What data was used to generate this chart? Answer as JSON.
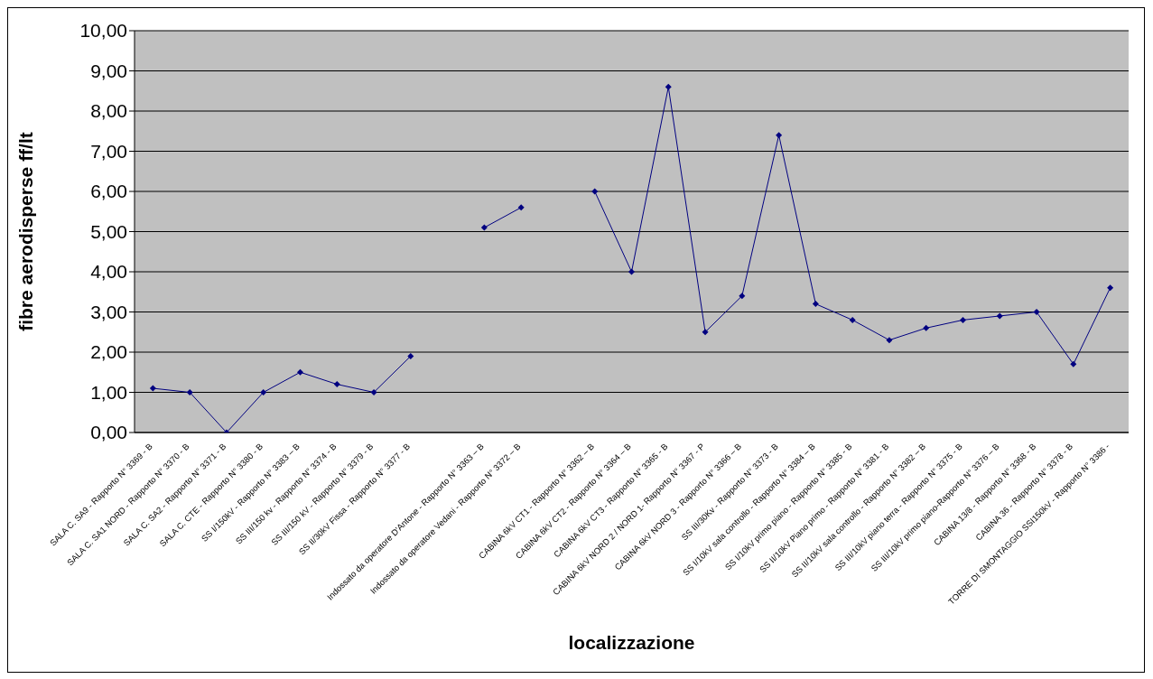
{
  "chart_data": {
    "type": "line",
    "xlabel": "localizzazione",
    "ylabel": "fibre aerodisperse ff/lt",
    "categories": [
      "SALA C. SA9 - Rapporto N° 3369 - B",
      "SALA C. SA1 NORD - Rapporto N° 3370 - B",
      "SALA C. SA2 - Rapporto N° 3371 - B",
      "SALA C. CTE - Rapporto N° 3380 - B",
      "SS I/150kV - Rapporto N° 3383 – B",
      "SS III/150 kv - Rapporto N° 3374 - B",
      "SS III/150 kV - Rapporto N° 3379 - B",
      "SS II/30kV Fissa - Rapporto N° 3377 - B",
      null,
      "Indossato da operatore D'Antone - Rapporto N° 3363 – B",
      "Indossato da operatore Vedani - Rapporto N° 3372 – B",
      null,
      "CABINA 6kV CT1 - Rapporto N° 3362 – B",
      "CABINA 6kV CT2 - Rapporto N° 3364 – B",
      "CABINA 6kV CT3 - Rapporto N° 3365 - B",
      "CABINA 6kV NORD 2 / NORD 1- Rapporto N° 3367 - P",
      "CABINA 6kV NORD 3 - Rapporto N° 3366 – B",
      "SS III/30Kv - Rapporto N° 3373 - B",
      "SS I/10kV sala controllo - Rapporto N° 3384 – B",
      "SS I/10kV primo piano - Rapporto N° 3385 - B",
      "SS II/10kV Piano primo - Rapporto N° 3381 - B",
      "SS II/10kV sala controllo - Rapporto N° 3382 – B",
      "SS III/10kV piano terra - Rapporto N° 3375 - B",
      "SS III/10kV primo piano-Rapporto N° 3376 – B",
      "CABINA 13/8 - Rapporto N° 3368 - B",
      "CABINA 36 - Rapporto N° 3378 - B",
      "TORRE DI SMONTAGGIO SSI150kV - Rapporto N° 3386 -"
    ],
    "series": [
      {
        "color": "#000080",
        "values": [
          1.1,
          1.0,
          0,
          1.0,
          1.5,
          1.2,
          1.0,
          1.9,
          null,
          5.1,
          5.6,
          null,
          6.0,
          4.0,
          8.6,
          2.5,
          3.4,
          7.4,
          3.2,
          2.8,
          2.3,
          2.6,
          2.8,
          2.9,
          3.0,
          1.7,
          3.6
        ]
      }
    ],
    "ylim": [
      0,
      10
    ],
    "yticks": [
      {
        "value": 0,
        "label": "0,00"
      },
      {
        "value": 1,
        "label": "1,00"
      },
      {
        "value": 2,
        "label": "2,00"
      },
      {
        "value": 3,
        "label": "3,00"
      },
      {
        "value": 4,
        "label": "4,00"
      },
      {
        "value": 5,
        "label": "5,00"
      },
      {
        "value": 6,
        "label": "6,00"
      },
      {
        "value": 7,
        "label": "7,00"
      },
      {
        "value": 8,
        "label": "8,00"
      },
      {
        "value": 9,
        "label": "9,00"
      },
      {
        "value": 10,
        "label": "10,00"
      }
    ],
    "grid": "y",
    "legend": false,
    "marker": "diamond",
    "line_style": "solid"
  }
}
